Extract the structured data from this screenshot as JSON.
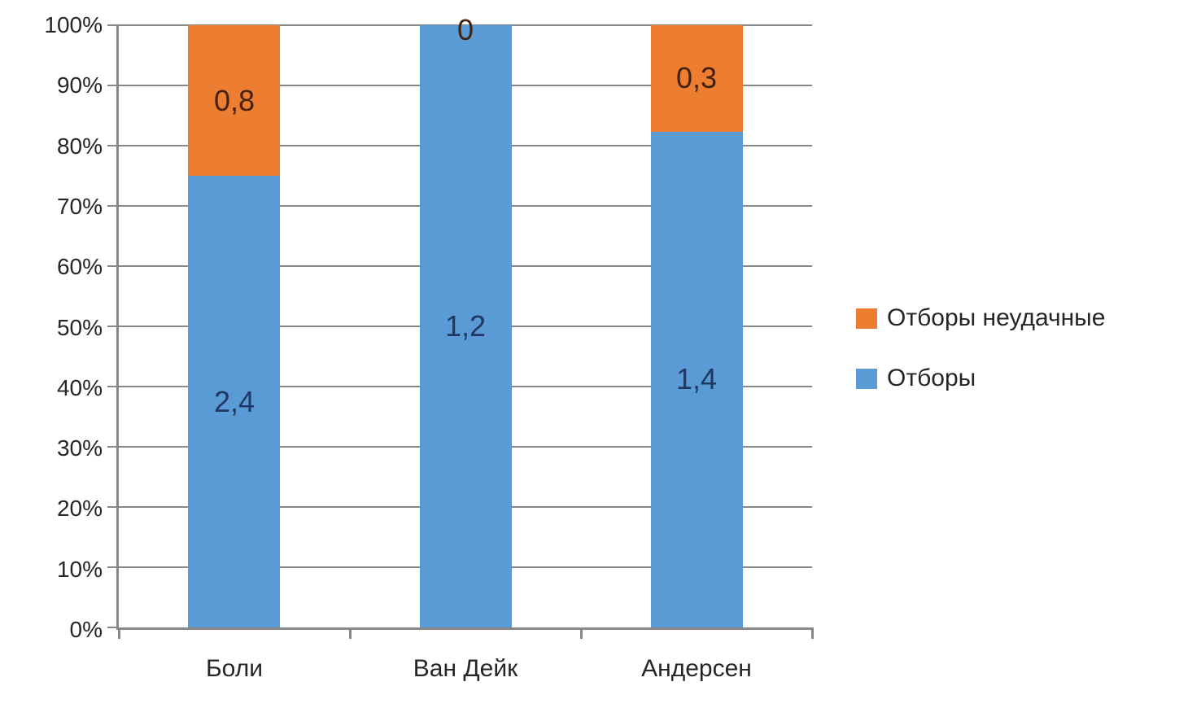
{
  "chart_data": {
    "type": "bar",
    "stacked": "percent",
    "title": "",
    "categories": [
      "Боли",
      "Ван Дейк",
      "Андерсен"
    ],
    "series": [
      {
        "name": "Отборы",
        "color": "#5B9BD5",
        "label_color": "#1F3864",
        "values": [
          2.4,
          1.2,
          1.4
        ],
        "labels": [
          "2,4",
          "1,2",
          "1,4"
        ]
      },
      {
        "name": "Отборы неудачные",
        "color": "#ED7D31",
        "label_color": "#44220B",
        "values": [
          0.8,
          0,
          0.3
        ],
        "labels": [
          "0,8",
          "0",
          "0,3"
        ]
      }
    ],
    "y_axis": {
      "min": 0,
      "max": 100,
      "step": 10,
      "format": "percent",
      "tick_labels": [
        "0%",
        "10%",
        "20%",
        "30%",
        "40%",
        "50%",
        "60%",
        "70%",
        "80%",
        "90%",
        "100%"
      ]
    },
    "legend": {
      "position": "right",
      "entries": [
        {
          "label": "Отборы неудачные",
          "color": "#ED7D31",
          "icon": "square-swatch-icon"
        },
        {
          "label": "Отборы",
          "color": "#5B9BD5",
          "icon": "square-swatch-icon"
        }
      ]
    },
    "grid": true,
    "gridline_color": "#878787",
    "axis_color": "#878787",
    "text_color": "#262626"
  }
}
